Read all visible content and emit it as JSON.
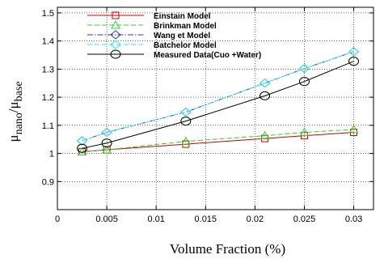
{
  "chart_data": {
    "type": "line",
    "title": "",
    "xlabel": "Volume Fraction (%)",
    "ylabel": {
      "main": "μ",
      "num_sub": "nano",
      "sep": "/",
      "den_main": "μ",
      "den_sub": "base"
    },
    "xlim": [
      0,
      0.032
    ],
    "ylim": [
      0.8,
      1.52
    ],
    "xticks": [
      0,
      0.005,
      0.01,
      0.015,
      0.02,
      0.025,
      0.03
    ],
    "xtick_labels": [
      "0",
      "0.005",
      "0.01",
      "0.015",
      "0.02",
      "0.025",
      "0.03"
    ],
    "yticks": [
      0.9,
      1,
      1.1,
      1.2,
      1.3,
      1.4,
      1.5
    ],
    "ytick_labels": [
      "0.9",
      "1",
      "1.1",
      "1.2",
      "1.3",
      "1.4",
      "1.5"
    ],
    "legend_position": "top-left",
    "x": [
      0.0025,
      0.005,
      0.013,
      0.021,
      0.025,
      0.03
    ],
    "series": [
      {
        "name": "Einstain Model",
        "color": "#cc0000",
        "dash": "solid",
        "marker": "square",
        "values": [
          1.006,
          1.013,
          1.033,
          1.053,
          1.063,
          1.075
        ]
      },
      {
        "name": "Brinkman Model",
        "color": "#33cc33",
        "dash": "dashed",
        "marker": "triangle",
        "values": [
          1.006,
          1.013,
          1.043,
          1.063,
          1.075,
          1.085
        ]
      },
      {
        "name": "Wang et Model",
        "color": "#3333cc",
        "dash": "dashdot",
        "marker": "diamond",
        "values": [
          1.045,
          1.075,
          1.147,
          1.25,
          1.302,
          1.362
        ]
      },
      {
        "name": "Batchelor Model",
        "color": "#33e0ff",
        "dash": "dashed",
        "marker": "diamond",
        "values": [
          1.045,
          1.075,
          1.147,
          1.25,
          1.302,
          1.362
        ]
      },
      {
        "name": "Measured Data(Cuo +Water)",
        "color": "#000000",
        "dash": "solid",
        "marker": "circle",
        "values": [
          1.018,
          1.037,
          1.115,
          1.205,
          1.256,
          1.328
        ]
      }
    ]
  }
}
